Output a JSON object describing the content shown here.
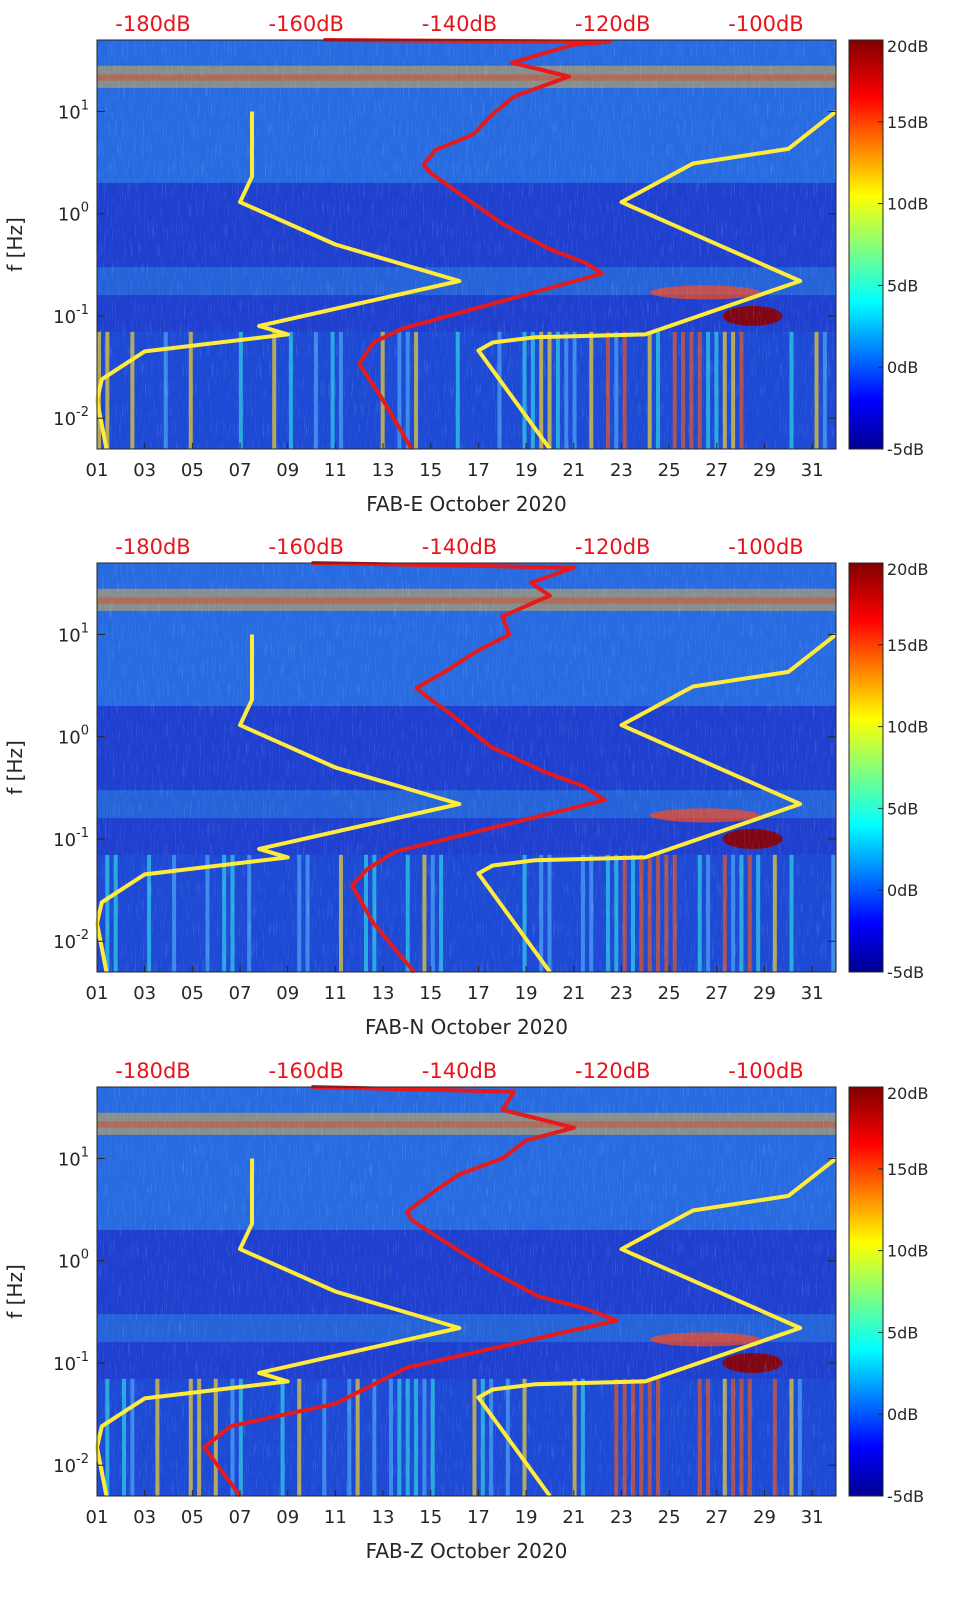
{
  "colors": {
    "red_curve": "#e41a1c",
    "yellow_curve": "#ffeb3b",
    "background_spectrogram": "#1a3cc8",
    "top_axis_text": "#e8141c"
  },
  "chart_data": [
    {
      "type": "heatmap",
      "title": "",
      "xlabel": "FAB-E October 2020",
      "ylabel": "f [Hz]",
      "x_unit": "day of October 2020",
      "xlim": [
        1,
        32
      ],
      "y_scale": "log",
      "ylim": [
        0.005,
        50
      ],
      "x_ticks": [
        "01",
        "03",
        "05",
        "07",
        "09",
        "11",
        "13",
        "15",
        "17",
        "19",
        "21",
        "23",
        "25",
        "27",
        "29",
        "31"
      ],
      "y_ticks": [
        "10^{-2}",
        "10^{-1}",
        "10^{0}",
        "10^{1}"
      ],
      "top_axis_ticks": [
        "-180dB",
        "-160dB",
        "-140dB",
        "-120dB",
        "-100dB"
      ],
      "colorbar": {
        "min_db": -5,
        "max_db": 20,
        "ticks": [
          "20dB",
          "15dB",
          "10dB",
          "5dB",
          "0dB",
          "-5dB"
        ],
        "colormap": "jet"
      },
      "series": [
        {
          "color": "yellow",
          "points": [
            [
              1.4,
              0.005
            ],
            [
              1.0,
              0.015
            ],
            [
              1.2,
              0.024
            ],
            [
              3.0,
              0.045
            ],
            [
              9.0,
              0.066
            ],
            [
              7.8,
              0.08
            ],
            [
              16.2,
              0.22
            ],
            [
              11.0,
              0.5
            ],
            [
              7.0,
              1.3
            ],
            [
              7.5,
              2.3
            ],
            [
              7.5,
              10
            ]
          ]
        },
        {
          "color": "yellow",
          "points": [
            [
              20.0,
              0.005
            ],
            [
              17.0,
              0.046
            ],
            [
              17.6,
              0.055
            ],
            [
              19.4,
              0.062
            ],
            [
              24.0,
              0.066
            ],
            [
              30.5,
              0.22
            ],
            [
              23.0,
              1.3
            ],
            [
              26.0,
              3.1
            ],
            [
              30.0,
              4.3
            ],
            [
              32.0,
              10
            ]
          ]
        },
        {
          "color": "red",
          "points": [
            [
              14.2,
              0.005
            ],
            [
              13.0,
              0.015
            ],
            [
              12.0,
              0.034
            ],
            [
              12.6,
              0.055
            ],
            [
              13.8,
              0.075
            ],
            [
              22.2,
              0.26
            ],
            [
              21.5,
              0.33
            ],
            [
              20.0,
              0.45
            ],
            [
              18.0,
              0.8
            ],
            [
              16.0,
              1.7
            ],
            [
              15.0,
              2.5
            ],
            [
              14.7,
              3.0
            ],
            [
              15.2,
              4.2
            ],
            [
              16.8,
              6.0
            ],
            [
              17.5,
              9
            ],
            [
              18.5,
              14
            ],
            [
              20.8,
              22
            ],
            [
              18.4,
              30
            ],
            [
              21.0,
              45
            ],
            [
              22.5,
              48
            ],
            [
              10.5,
              50
            ]
          ]
        }
      ]
    },
    {
      "type": "heatmap",
      "title": "",
      "xlabel": "FAB-N October 2020",
      "ylabel": "f [Hz]",
      "x_unit": "day of October 2020",
      "xlim": [
        1,
        32
      ],
      "y_scale": "log",
      "ylim": [
        0.005,
        50
      ],
      "x_ticks": [
        "01",
        "03",
        "05",
        "07",
        "09",
        "11",
        "13",
        "15",
        "17",
        "19",
        "21",
        "23",
        "25",
        "27",
        "29",
        "31"
      ],
      "y_ticks": [
        "10^{-2}",
        "10^{-1}",
        "10^{0}",
        "10^{1}"
      ],
      "top_axis_ticks": [
        "-180dB",
        "-160dB",
        "-140dB",
        "-120dB",
        "-100dB"
      ],
      "colorbar": {
        "min_db": -5,
        "max_db": 20,
        "ticks": [
          "20dB",
          "15dB",
          "10dB",
          "5dB",
          "0dB",
          "-5dB"
        ],
        "colormap": "jet"
      },
      "series": [
        {
          "color": "yellow",
          "points": [
            [
              1.4,
              0.005
            ],
            [
              1.0,
              0.015
            ],
            [
              1.2,
              0.024
            ],
            [
              3.0,
              0.045
            ],
            [
              9.0,
              0.066
            ],
            [
              7.8,
              0.08
            ],
            [
              16.2,
              0.22
            ],
            [
              11.0,
              0.5
            ],
            [
              7.0,
              1.3
            ],
            [
              7.5,
              2.3
            ],
            [
              7.5,
              10
            ]
          ]
        },
        {
          "color": "yellow",
          "points": [
            [
              20.0,
              0.005
            ],
            [
              17.0,
              0.046
            ],
            [
              17.6,
              0.055
            ],
            [
              19.4,
              0.062
            ],
            [
              24.0,
              0.066
            ],
            [
              30.5,
              0.22
            ],
            [
              23.0,
              1.3
            ],
            [
              26.0,
              3.1
            ],
            [
              30.0,
              4.3
            ],
            [
              32.0,
              10
            ]
          ]
        },
        {
          "color": "red",
          "points": [
            [
              14.3,
              0.005
            ],
            [
              12.6,
              0.015
            ],
            [
              11.7,
              0.035
            ],
            [
              12.3,
              0.05
            ],
            [
              13.5,
              0.075
            ],
            [
              22.3,
              0.24
            ],
            [
              21.4,
              0.33
            ],
            [
              19.8,
              0.45
            ],
            [
              17.5,
              0.8
            ],
            [
              15.8,
              1.7
            ],
            [
              14.8,
              2.5
            ],
            [
              14.4,
              3.0
            ],
            [
              15.5,
              4.2
            ],
            [
              17.0,
              7
            ],
            [
              18.3,
              10
            ],
            [
              18.0,
              15
            ],
            [
              20.0,
              24
            ],
            [
              19.2,
              32
            ],
            [
              21.0,
              45
            ],
            [
              10.0,
              50
            ]
          ]
        }
      ]
    },
    {
      "type": "heatmap",
      "title": "",
      "xlabel": "FAB-Z October 2020",
      "ylabel": "f [Hz]",
      "x_unit": "day of October 2020",
      "xlim": [
        1,
        32
      ],
      "y_scale": "log",
      "ylim": [
        0.005,
        50
      ],
      "x_ticks": [
        "01",
        "03",
        "05",
        "07",
        "09",
        "11",
        "13",
        "15",
        "17",
        "19",
        "21",
        "23",
        "25",
        "27",
        "29",
        "31"
      ],
      "y_ticks": [
        "10^{-2}",
        "10^{-1}",
        "10^{0}",
        "10^{1}"
      ],
      "top_axis_ticks": [
        "-180dB",
        "-160dB",
        "-140dB",
        "-120dB",
        "-100dB"
      ],
      "colorbar": {
        "min_db": -5,
        "max_db": 20,
        "ticks": [
          "20dB",
          "15dB",
          "10dB",
          "5dB",
          "0dB",
          "-5dB"
        ],
        "colormap": "jet"
      },
      "series": [
        {
          "color": "yellow",
          "points": [
            [
              1.4,
              0.005
            ],
            [
              1.0,
              0.015
            ],
            [
              1.2,
              0.024
            ],
            [
              3.0,
              0.045
            ],
            [
              9.0,
              0.066
            ],
            [
              7.8,
              0.08
            ],
            [
              16.2,
              0.22
            ],
            [
              11.0,
              0.5
            ],
            [
              7.0,
              1.3
            ],
            [
              7.5,
              2.3
            ],
            [
              7.5,
              10
            ]
          ]
        },
        {
          "color": "yellow",
          "points": [
            [
              20.0,
              0.005
            ],
            [
              17.0,
              0.046
            ],
            [
              17.6,
              0.055
            ],
            [
              19.4,
              0.062
            ],
            [
              24.0,
              0.066
            ],
            [
              30.5,
              0.22
            ],
            [
              23.0,
              1.3
            ],
            [
              26.0,
              3.1
            ],
            [
              30.0,
              4.3
            ],
            [
              32.0,
              10
            ]
          ]
        },
        {
          "color": "red",
          "points": [
            [
              7.0,
              0.005
            ],
            [
              5.5,
              0.015
            ],
            [
              6.6,
              0.024
            ],
            [
              8.5,
              0.03
            ],
            [
              11.0,
              0.04
            ],
            [
              12.5,
              0.06
            ],
            [
              14.0,
              0.09
            ],
            [
              22.8,
              0.26
            ],
            [
              21.5,
              0.34
            ],
            [
              19.5,
              0.45
            ],
            [
              17.5,
              0.8
            ],
            [
              15.3,
              1.7
            ],
            [
              14.2,
              2.5
            ],
            [
              14.0,
              3.0
            ],
            [
              15.0,
              4.5
            ],
            [
              16.2,
              7
            ],
            [
              18.0,
              10
            ],
            [
              19.0,
              15
            ],
            [
              21.0,
              20
            ],
            [
              18.0,
              30
            ],
            [
              18.5,
              45
            ],
            [
              10.0,
              50
            ]
          ]
        }
      ]
    }
  ]
}
